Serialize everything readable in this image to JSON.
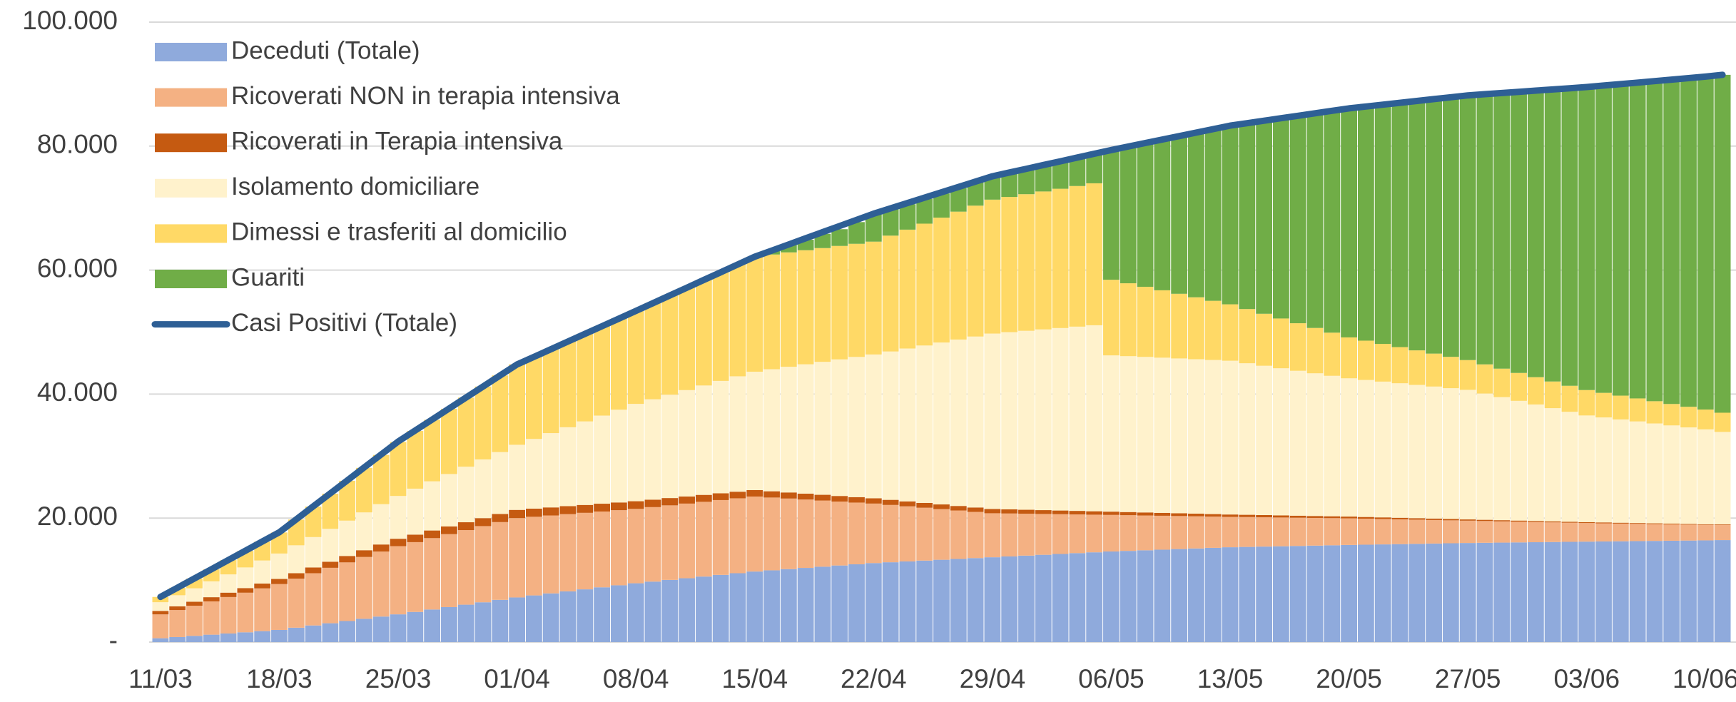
{
  "chart_data": {
    "type": "bar",
    "stacked": true,
    "categories": [
      "11/03",
      null,
      null,
      null,
      null,
      null,
      null,
      "18/03",
      null,
      null,
      null,
      null,
      null,
      null,
      "25/03",
      null,
      null,
      null,
      null,
      null,
      null,
      "01/04",
      null,
      null,
      null,
      null,
      null,
      null,
      "08/04",
      null,
      null,
      null,
      null,
      null,
      null,
      "15/04",
      null,
      null,
      null,
      null,
      null,
      null,
      "22/04",
      null,
      null,
      null,
      null,
      null,
      null,
      "29/04",
      null,
      null,
      null,
      null,
      null,
      null,
      "06/05",
      null,
      null,
      null,
      null,
      null,
      null,
      "13/05",
      null,
      null,
      null,
      null,
      null,
      null,
      "20/05",
      null,
      null,
      null,
      null,
      null,
      null,
      "27/05",
      null,
      null,
      null,
      null,
      null,
      null,
      "03/06",
      null,
      null,
      null,
      null,
      null,
      null,
      "10/06",
      null
    ],
    "ylim": [
      0,
      100000
    ],
    "yticks": [
      {
        "value": 0,
        "label": "-"
      },
      {
        "value": 20000,
        "label": "20.000"
      },
      {
        "value": 40000,
        "label": "40.000"
      },
      {
        "value": 60000,
        "label": "60.000"
      },
      {
        "value": 80000,
        "label": "80.000"
      },
      {
        "value": 100000,
        "label": "100.000"
      }
    ],
    "grid": true,
    "legend": "top-left",
    "series": [
      {
        "name": "Deceduti (Totale)",
        "color": "#8faadc",
        "values": [
          617,
          809,
          1000,
          1192,
          1384,
          1576,
          1767,
          1959,
          2318,
          2678,
          3037,
          3396,
          3756,
          4115,
          4474,
          4863,
          5253,
          5642,
          6031,
          6420,
          6810,
          7199,
          7525,
          7852,
          8178,
          8505,
          8831,
          9158,
          9484,
          9754,
          10025,
          10295,
          10566,
          10836,
          11106,
          11377,
          11572,
          11766,
          11961,
          12156,
          12351,
          12545,
          12740,
          12874,
          13008,
          13142,
          13277,
          13411,
          13545,
          13679,
          13812,
          13945,
          14078,
          14211,
          14345,
          14478,
          14611,
          14709,
          14807,
          14905,
          15003,
          15100,
          15198,
          15296,
          15348,
          15401,
          15453,
          15505,
          15557,
          15610,
          15662,
          15708,
          15754,
          15800,
          15846,
          15891,
          15937,
          15983,
          16014,
          16045,
          16076,
          16108,
          16139,
          16170,
          16201,
          16230,
          16259,
          16288,
          16318,
          16347,
          16376,
          16405,
          16449
        ]
      },
      {
        "name": "Ricoverati NON in terapia intensiva",
        "color": "#f4b183",
        "values": [
          3852,
          4359,
          4866,
          5373,
          5879,
          6386,
          6893,
          7400,
          7914,
          8429,
          8943,
          9457,
          9971,
          10486,
          11000,
          11257,
          11514,
          11771,
          12029,
          12286,
          12543,
          12800,
          12686,
          12571,
          12457,
          12343,
          12229,
          12114,
          12000,
          12014,
          12029,
          12043,
          12057,
          12071,
          12086,
          12100,
          11743,
          11386,
          11029,
          10671,
          10314,
          9957,
          9600,
          9243,
          8886,
          8529,
          8171,
          7814,
          7457,
          7100,
          6929,
          6757,
          6586,
          6414,
          6243,
          6071,
          5900,
          5757,
          5614,
          5471,
          5329,
          5186,
          5043,
          4900,
          4814,
          4729,
          4643,
          4557,
          4471,
          4386,
          4300,
          4200,
          4100,
          4000,
          3900,
          3800,
          3700,
          3600,
          3514,
          3429,
          3343,
          3257,
          3171,
          3086,
          3000,
          2929,
          2857,
          2786,
          2714,
          2643,
          2571,
          2500,
          2450
        ]
      },
      {
        "name": "Ricoverati in Terapia intensiva",
        "color": "#c55a11",
        "values": [
          560,
          598,
          635,
          673,
          710,
          748,
          785,
          823,
          876,
          929,
          982,
          1035,
          1088,
          1141,
          1194,
          1213,
          1231,
          1250,
          1269,
          1287,
          1306,
          1324,
          1311,
          1299,
          1286,
          1274,
          1261,
          1249,
          1236,
          1207,
          1179,
          1150,
          1121,
          1093,
          1064,
          1036,
          1009,
          983,
          956,
          930,
          903,
          877,
          850,
          826,
          803,
          779,
          756,
          732,
          709,
          685,
          663,
          641,
          619,
          596,
          574,
          552,
          530,
          509,
          489,
          468,
          447,
          427,
          406,
          385,
          370,
          356,
          341,
          327,
          312,
          298,
          283,
          271,
          260,
          248,
          237,
          225,
          214,
          202,
          195,
          187,
          180,
          172,
          165,
          157,
          150,
          143,
          136,
          129,
          121,
          114,
          107,
          100,
          98
        ]
      },
      {
        "name": "Isolamento domiciliare",
        "color": "#fff2cc",
        "values": [
          1400,
          1786,
          2171,
          2557,
          2943,
          3329,
          3714,
          4100,
          4500,
          4900,
          5300,
          5700,
          6100,
          6500,
          6900,
          7414,
          7929,
          8443,
          8957,
          9471,
          9986,
          10500,
          11243,
          11986,
          12729,
          13471,
          14214,
          14957,
          15700,
          16186,
          16671,
          17157,
          17643,
          18129,
          18614,
          19100,
          19686,
          20271,
          20857,
          21443,
          22029,
          22614,
          23200,
          23929,
          24657,
          25386,
          26114,
          26843,
          27571,
          28300,
          28583,
          28867,
          29150,
          29433,
          29717,
          30000,
          25200,
          25143,
          25086,
          25029,
          24971,
          24914,
          24857,
          24800,
          24443,
          24086,
          23729,
          23371,
          23014,
          22657,
          22300,
          22100,
          21900,
          21700,
          21500,
          21300,
          21100,
          20900,
          20371,
          19843,
          19314,
          18786,
          18257,
          17729,
          17200,
          16929,
          16657,
          16386,
          16114,
          15843,
          15571,
          15300,
          14900
        ]
      },
      {
        "name": "Dimessi e trasferiti al domicilio",
        "color": "#ffd966",
        "values": [
          850,
          1214,
          1579,
          1943,
          2307,
          2671,
          3036,
          3400,
          4157,
          4914,
          5671,
          6429,
          7186,
          7943,
          8700,
          9310,
          9921,
          10531,
          11142,
          11752,
          12363,
          12973,
          13265,
          13556,
          13848,
          14140,
          14431,
          14723,
          15014,
          15520,
          16025,
          16531,
          17037,
          17542,
          18048,
          18553,
          18503,
          18452,
          18402,
          18351,
          18301,
          18250,
          18200,
          18686,
          19171,
          19657,
          20143,
          20629,
          21114,
          21600,
          21817,
          22033,
          22250,
          22467,
          22683,
          22900,
          12200,
          11757,
          11314,
          10871,
          10429,
          9986,
          9543,
          9100,
          8743,
          8386,
          8029,
          7671,
          7314,
          6957,
          6600,
          6343,
          6086,
          5829,
          5571,
          5314,
          5057,
          4800,
          4700,
          4600,
          4500,
          4400,
          4300,
          4200,
          4100,
          3971,
          3843,
          3714,
          3586,
          3457,
          3329,
          3200,
          3100
        ]
      },
      {
        "name": "Guariti",
        "color": "#70ad47",
        "values": [
          0,
          0,
          0,
          0,
          0,
          0,
          0,
          0,
          0,
          0,
          0,
          0,
          0,
          0,
          0,
          0,
          0,
          0,
          0,
          0,
          0,
          0,
          0,
          0,
          0,
          0,
          0,
          0,
          0,
          0,
          0,
          0,
          0,
          0,
          0,
          0,
          600,
          1200,
          1700,
          2300,
          2700,
          3500,
          4500,
          4300,
          4100,
          4000,
          3900,
          3800,
          3750,
          3700,
          3900,
          4100,
          4300,
          4400,
          4600,
          4700,
          20969,
          22087,
          23206,
          24324,
          25443,
          26561,
          27680,
          28798,
          29968,
          31139,
          32309,
          33480,
          34650,
          35821,
          36991,
          37804,
          38617,
          39430,
          40244,
          41057,
          41870,
          42683,
          43561,
          44438,
          45316,
          46193,
          47071,
          47948,
          48826,
          49523,
          50220,
          50917,
          51613,
          52310,
          53007,
          53704,
          54500
        ]
      },
      {
        "name": "Casi Positivi (Totale)",
        "color": "#2e5f95",
        "type": "line",
        "values": [
          7280,
          8770,
          10261,
          11751,
          13242,
          14732,
          16223,
          17713,
          19803,
          21894,
          23984,
          26075,
          28165,
          30256,
          32346,
          34121,
          35896,
          37672,
          39447,
          41222,
          42998,
          44773,
          46007,
          47242,
          48476,
          49711,
          50945,
          52180,
          53414,
          54662,
          55911,
          57159,
          58408,
          59656,
          60905,
          62153,
          63144,
          64135,
          65127,
          66118,
          67109,
          68101,
          69092,
          69955,
          70818,
          71681,
          72545,
          73408,
          74271,
          75134,
          75739,
          76344,
          76949,
          77554,
          78159,
          78764,
          79369,
          79930,
          80492,
          81053,
          81614,
          82176,
          82737,
          83298,
          83697,
          84096,
          84495,
          84894,
          85293,
          85692,
          86091,
          86390,
          86689,
          86988,
          87286,
          87585,
          87884,
          88183,
          88375,
          88567,
          88759,
          88950,
          89142,
          89334,
          89526,
          89766,
          90005,
          90245,
          90485,
          90725,
          90964,
          91204,
          91500
        ]
      }
    ]
  }
}
